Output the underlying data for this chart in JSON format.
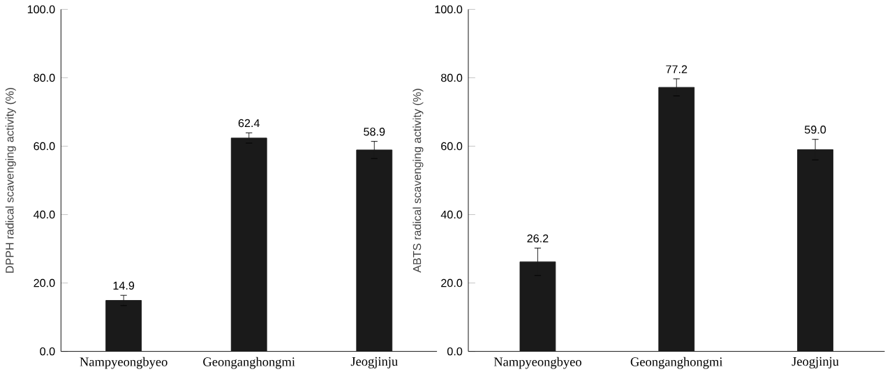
{
  "chart_data": [
    {
      "type": "bar",
      "ylabel": "DPPH radical scavenging activity (%)",
      "categories": [
        "Nampyeongbyeo",
        "Geonganghongmi",
        "Jeogjinju"
      ],
      "values": [
        14.9,
        62.4,
        58.9
      ],
      "value_labels": [
        "14.9",
        "62.4",
        "58.9"
      ],
      "errors": [
        1.5,
        1.5,
        2.5
      ],
      "color": "#1a1a1a",
      "ylim": [
        0,
        100
      ],
      "yticks": [
        {
          "value": 0,
          "label": "0.0"
        },
        {
          "value": 20,
          "label": "20.0"
        },
        {
          "value": 40,
          "label": "40.0"
        },
        {
          "value": 60,
          "label": "60.0"
        },
        {
          "value": 80,
          "label": "80.0"
        },
        {
          "value": 100,
          "label": "100.0"
        }
      ]
    },
    {
      "type": "bar",
      "ylabel": "ABTS radical scavenging activity (%)",
      "categories": [
        "Nampyeongbyeo",
        "Geonganghongmi",
        "Jeogjinju"
      ],
      "values": [
        26.2,
        77.2,
        59.0
      ],
      "value_labels": [
        "26.2",
        "77.2",
        "59.0"
      ],
      "errors": [
        4,
        2.5,
        3
      ],
      "color": "#1a1a1a",
      "ylim": [
        0,
        100
      ],
      "yticks": [
        {
          "value": 0,
          "label": "0.0"
        },
        {
          "value": 20,
          "label": "20.0"
        },
        {
          "value": 40,
          "label": "40.0"
        },
        {
          "value": 60,
          "label": "60.0"
        },
        {
          "value": 80,
          "label": "80.0"
        },
        {
          "value": 100,
          "label": "100.0"
        }
      ]
    }
  ]
}
